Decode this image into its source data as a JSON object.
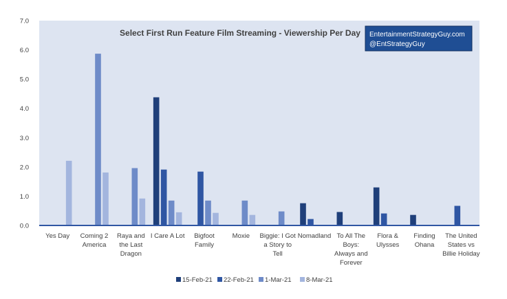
{
  "chart_data": {
    "type": "bar",
    "title": "Select First Run Feature Film Streaming - Viewership Per Day",
    "callout": [
      "EntertainmentStrategyGuy.com",
      "@EntStrategyGuy"
    ],
    "ylim": [
      0,
      7
    ],
    "yticks": [
      "0.0",
      "1.0",
      "2.0",
      "3.0",
      "4.0",
      "5.0",
      "6.0",
      "7.0"
    ],
    "grid": false,
    "legend_position": "bottom",
    "categories": [
      [
        "Yes Day"
      ],
      [
        "Coming 2",
        "America"
      ],
      [
        "Raya and",
        "the Last",
        "Dragon"
      ],
      [
        "I Care A Lot"
      ],
      [
        "Bigfoot",
        "Family"
      ],
      [
        "Moxie"
      ],
      [
        "Biggie: I Got",
        "a Story to",
        "Tell"
      ],
      [
        "Nomadland"
      ],
      [
        "To All The",
        "Boys:",
        "Always and",
        "Forever"
      ],
      [
        "Flora &",
        "Ulysses"
      ],
      [
        "Finding",
        "Ohana"
      ],
      [
        "The United",
        "States vs",
        "Billie Holiday"
      ]
    ],
    "series": [
      {
        "name": "15-Feb-21",
        "color": "#1f3f7a",
        "values": [
          null,
          null,
          null,
          4.38,
          null,
          null,
          null,
          0.76,
          0.46,
          1.3,
          0.36,
          null
        ]
      },
      {
        "name": "22-Feb-21",
        "color": "#2f56a3",
        "values": [
          null,
          null,
          null,
          1.91,
          1.84,
          null,
          null,
          0.22,
          null,
          0.41,
          null,
          0.67
        ]
      },
      {
        "name": "1-Mar-21",
        "color": "#6e8bc8",
        "values": [
          null,
          5.87,
          1.96,
          0.85,
          0.85,
          0.85,
          0.48,
          null,
          null,
          null,
          null,
          null
        ]
      },
      {
        "name": "8-Mar-21",
        "color": "#a3b5de",
        "values": [
          2.21,
          1.81,
          0.92,
          0.45,
          0.43,
          0.36,
          null,
          null,
          null,
          null,
          null,
          null
        ]
      }
    ],
    "colors": {
      "plot_background": "#dde4f1",
      "axis": "#2f56a3",
      "callout_fill": "#1f4e94"
    }
  }
}
